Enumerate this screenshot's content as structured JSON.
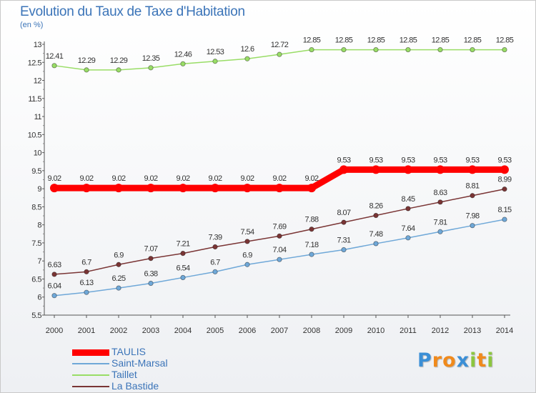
{
  "header": {
    "title": "Evolution du Taux de Taxe d'Habitation",
    "subtitle": "(en %)"
  },
  "chart_data": {
    "type": "line",
    "title": "Evolution du Taux de Taxe d'Habitation",
    "ylabel": "(en %)",
    "xlabel": "",
    "ylim": [
      5.5,
      13
    ],
    "ytick_step": 0.5,
    "grid": false,
    "legend_position": "bottom-left",
    "x": [
      "2000",
      "2001",
      "2002",
      "2003",
      "2004",
      "2005",
      "2006",
      "2007",
      "2008",
      "2009",
      "2010",
      "2011",
      "2012",
      "2013",
      "2014"
    ],
    "series": [
      {
        "name": "TAULIS",
        "color": "#ff0000",
        "values": [
          9.02,
          9.02,
          9.02,
          9.02,
          9.02,
          9.02,
          9.02,
          9.02,
          9.02,
          9.53,
          9.53,
          9.53,
          9.53,
          9.53,
          9.53
        ],
        "labels": [
          "9.02",
          "9.02",
          "9.02",
          "9.02",
          "9.02",
          "9.02",
          "9.02",
          "9.02",
          "9.02",
          "9.53",
          "9.53",
          "9.53",
          "9.53",
          "9.53",
          "9.53"
        ]
      },
      {
        "name": "Saint-Marsal",
        "color": "#6fa8d8",
        "values": [
          6.04,
          6.13,
          6.25,
          6.38,
          6.54,
          6.7,
          6.9,
          7.04,
          7.18,
          7.31,
          7.48,
          7.64,
          7.81,
          7.98,
          8.15
        ],
        "labels": [
          "6.04",
          "6.13",
          "6.25",
          "6.38",
          "6.54",
          "6.7",
          "6.9",
          "7.04",
          "7.18",
          "7.31",
          "7.48",
          "7.64",
          "7.81",
          "7.98",
          "8.15"
        ]
      },
      {
        "name": "Taillet",
        "color": "#99dd66",
        "values": [
          12.41,
          12.29,
          12.29,
          12.35,
          12.46,
          12.53,
          12.6,
          12.72,
          12.85,
          12.85,
          12.85,
          12.85,
          12.85,
          12.85,
          12.85
        ],
        "labels": [
          "12.41",
          "12.29",
          "12.29",
          "12.35",
          "12.46",
          "12.53",
          "12.6",
          "12.72",
          "12.85",
          "12.85",
          "12.85",
          "12.85",
          "12.85",
          "12.85",
          "12.85"
        ]
      },
      {
        "name": "La Bastide",
        "color": "#7a3535",
        "values": [
          6.63,
          6.7,
          6.9,
          7.07,
          7.21,
          7.39,
          7.54,
          7.69,
          7.88,
          8.07,
          8.26,
          8.45,
          8.63,
          8.81,
          8.99
        ],
        "labels": [
          "6.63",
          "6.7",
          "6.9",
          "7.07",
          "7.21",
          "7.39",
          "7.54",
          "7.69",
          "7.88",
          "8.07",
          "8.26",
          "8.45",
          "8.63",
          "8.81",
          "8.99"
        ]
      }
    ]
  },
  "legend": {
    "items": [
      {
        "label": "TAULIS",
        "color": "#ff0000"
      },
      {
        "label": "Saint-Marsal",
        "color": "#6fa8d8"
      },
      {
        "label": "Taillet",
        "color": "#99dd66"
      },
      {
        "label": "La Bastide",
        "color": "#7a3535"
      }
    ]
  },
  "logo": {
    "letters": [
      "P",
      "r",
      "o",
      "x",
      "i",
      "t",
      "i"
    ],
    "colors": [
      "#3b8fd6",
      "#f08a1c",
      "#f08a1c",
      "#3b8fd6",
      "#8cc63f",
      "#f08a1c",
      "#8cc63f"
    ]
  }
}
